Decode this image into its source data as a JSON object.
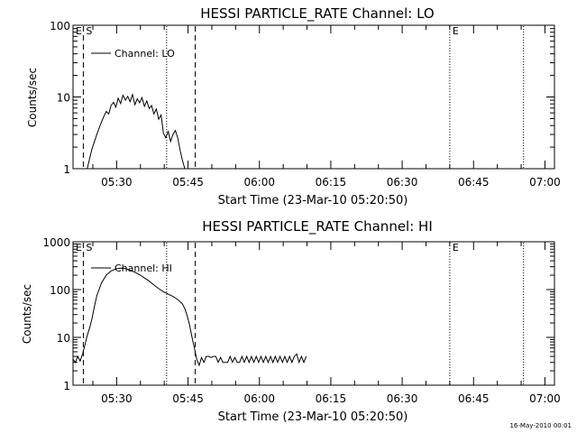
{
  "footer_text": "16-May-2010 00:01",
  "chart_data": [
    {
      "type": "line",
      "title": "HESSI PARTICLE_RATE Channel: LO",
      "xlabel": "Start Time (23-Mar-10 05:20:50)",
      "ylabel": "Counts/sec",
      "yscale": "log",
      "ylim": [
        1,
        100
      ],
      "ytick_labels": [
        "1",
        "10",
        "100"
      ],
      "xlim": [
        "05:20:50",
        "07:02:00"
      ],
      "xtick_labels": [
        "05:30",
        "05:45",
        "06:00",
        "06:15",
        "06:30",
        "06:45",
        "07:00"
      ],
      "legend": {
        "text": "Channel: LO",
        "position": "top-left"
      },
      "markers": [
        {
          "label": "E",
          "time": "05:20:50",
          "style": "dashed"
        },
        {
          "label": "S",
          "time": "05:23:00",
          "style": "dashed"
        },
        {
          "label": "",
          "time": "05:40:30",
          "style": "dotted"
        },
        {
          "label": "",
          "time": "05:46:30",
          "style": "dashed"
        },
        {
          "label": "E",
          "time": "06:40:00",
          "style": "dotted"
        },
        {
          "label": "",
          "time": "06:55:30",
          "style": "dotted"
        }
      ],
      "series": [
        {
          "x": [
            "05:23:50",
            "05:24:20",
            "05:24:50",
            "05:25:20",
            "05:25:50",
            "05:26:20",
            "05:26:50",
            "05:27:20",
            "05:27:50",
            "05:28:20",
            "05:28:50",
            "05:29:20",
            "05:29:50",
            "05:30:20",
            "05:30:50",
            "05:31:20",
            "05:31:50",
            "05:32:20",
            "05:32:50",
            "05:33:20",
            "05:33:50",
            "05:34:20",
            "05:34:50",
            "05:35:20",
            "05:35:50",
            "05:36:20",
            "05:36:50",
            "05:37:20",
            "05:37:50",
            "05:38:20",
            "05:38:50",
            "05:39:20",
            "05:39:50",
            "05:40:20",
            "05:40:50",
            "05:41:20",
            "05:41:50",
            "05:42:20",
            "05:42:50",
            "05:43:20",
            "05:43:50",
            "05:44:20"
          ],
          "values": [
            1.0,
            1.4,
            1.9,
            2.4,
            3.0,
            3.7,
            4.5,
            5.4,
            6.3,
            5.8,
            7.6,
            8.4,
            7.2,
            9.6,
            8.1,
            10.6,
            9.0,
            10.2,
            8.6,
            10.8,
            7.8,
            9.4,
            8.3,
            9.8,
            7.4,
            8.8,
            6.9,
            7.6,
            5.8,
            6.8,
            4.9,
            5.6,
            3.1,
            2.7,
            3.3,
            2.4,
            3.0,
            3.4,
            2.7,
            1.8,
            1.3,
            1.0
          ]
        }
      ]
    },
    {
      "type": "line",
      "title": "HESSI PARTICLE_RATE Channel: HI",
      "xlabel": "Start Time (23-Mar-10 05:20:50)",
      "ylabel": "Counts/sec",
      "yscale": "log",
      "ylim": [
        1,
        1000
      ],
      "ytick_labels": [
        "1",
        "10",
        "100",
        "1000"
      ],
      "xlim": [
        "05:20:50",
        "07:02:00"
      ],
      "xtick_labels": [
        "05:30",
        "05:45",
        "06:00",
        "06:15",
        "06:30",
        "06:45",
        "07:00"
      ],
      "legend": {
        "text": "Channel: HI",
        "position": "top-left"
      },
      "markers": [
        {
          "label": "E",
          "time": "05:20:50",
          "style": "dashed"
        },
        {
          "label": "S",
          "time": "05:23:00",
          "style": "dashed"
        },
        {
          "label": "",
          "time": "05:40:30",
          "style": "dotted"
        },
        {
          "label": "",
          "time": "05:46:30",
          "style": "dashed"
        },
        {
          "label": "E",
          "time": "06:40:00",
          "style": "dotted"
        },
        {
          "label": "",
          "time": "06:55:30",
          "style": "dotted"
        }
      ],
      "series": [
        {
          "x": [
            "05:20:50",
            "05:21:20",
            "05:21:50",
            "05:22:20",
            "05:22:50",
            "05:23:20",
            "05:23:50",
            "05:24:20",
            "05:24:50",
            "05:25:20",
            "05:25:50",
            "05:26:50",
            "05:27:50",
            "05:28:50",
            "05:29:50",
            "05:30:50",
            "05:31:50",
            "05:32:50",
            "05:33:50",
            "05:34:50",
            "05:35:50",
            "05:36:50",
            "05:37:50",
            "05:38:50",
            "05:39:50",
            "05:40:50",
            "05:41:50",
            "05:42:50",
            "05:43:50",
            "05:44:20",
            "05:44:50",
            "05:45:20",
            "05:45:50",
            "05:46:20",
            "05:46:50",
            "05:47:20",
            "05:47:50",
            "05:48:20",
            "05:48:50",
            "05:49:20",
            "05:49:50",
            "05:50:20",
            "05:50:50",
            "05:51:20",
            "05:51:50",
            "05:52:20",
            "05:52:50",
            "05:53:20",
            "05:53:50",
            "05:54:20",
            "05:54:50",
            "05:55:20",
            "05:55:50",
            "05:56:20",
            "05:56:50",
            "05:57:20",
            "05:57:50",
            "05:58:20",
            "05:58:50",
            "05:59:20",
            "05:59:50",
            "06:00:20",
            "06:00:50",
            "06:01:20",
            "06:01:50",
            "06:02:20",
            "06:02:50",
            "06:03:20",
            "06:03:50",
            "06:04:20",
            "06:04:50",
            "06:05:20",
            "06:05:50",
            "06:06:20",
            "06:06:50",
            "06:07:20",
            "06:07:50",
            "06:08:20",
            "06:08:50",
            "06:09:20",
            "06:09:50"
          ],
          "values": [
            3.5,
            3.0,
            4.0,
            3.2,
            4.5,
            7.0,
            11,
            16,
            25,
            45,
            75,
            140,
            200,
            245,
            270,
            280,
            275,
            255,
            230,
            205,
            175,
            150,
            125,
            105,
            90,
            80,
            72,
            62,
            50,
            40,
            28,
            18,
            10,
            6,
            3.5,
            2.6,
            3.8,
            3.0,
            4.0,
            4.0,
            3.8,
            4.0,
            4.0,
            3.0,
            3.8,
            3.0,
            3.0,
            3.0,
            4.0,
            3.0,
            3.8,
            3.0,
            3.0,
            4.0,
            3.0,
            4.0,
            3.0,
            4.0,
            3.0,
            4.0,
            3.0,
            4.0,
            3.0,
            4.0,
            3.0,
            4.0,
            3.0,
            4.0,
            3.0,
            4.0,
            3.0,
            4.0,
            3.0,
            4.0,
            3.0,
            4.0,
            4.5,
            3.0,
            4.0,
            3.0,
            4.0
          ]
        }
      ]
    }
  ]
}
